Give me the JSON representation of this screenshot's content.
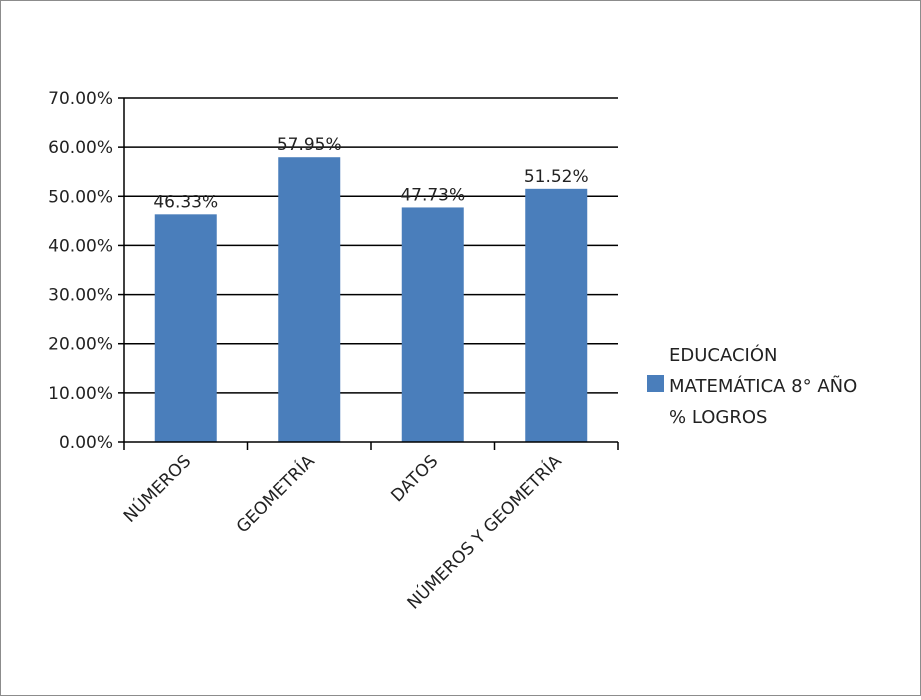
{
  "chart_data": {
    "type": "bar",
    "categories": [
      "NÚMEROS",
      "GEOMETRÍA",
      "DATOS",
      "NÚMEROS Y GEOMETRÍA"
    ],
    "series": [
      {
        "name": "EDUCACIÓN MATEMÁTICA 8° AÑO % LOGROS",
        "values": [
          46.33,
          57.95,
          47.73,
          51.52
        ],
        "color": "#4a7ebb"
      }
    ],
    "value_labels": [
      "46.33%",
      "57.95%",
      "47.73%",
      "51.52%"
    ],
    "yticks": [
      "0.00%",
      "10.00%",
      "20.00%",
      "30.00%",
      "40.00%",
      "50.00%",
      "60.00%",
      "70.00%"
    ],
    "ylim": [
      0,
      70
    ],
    "grid": true,
    "legend": {
      "position": "right",
      "lines": [
        "EDUCACIÓN",
        "MATEMÁTICA 8° AÑO",
        "% LOGROS"
      ]
    }
  }
}
